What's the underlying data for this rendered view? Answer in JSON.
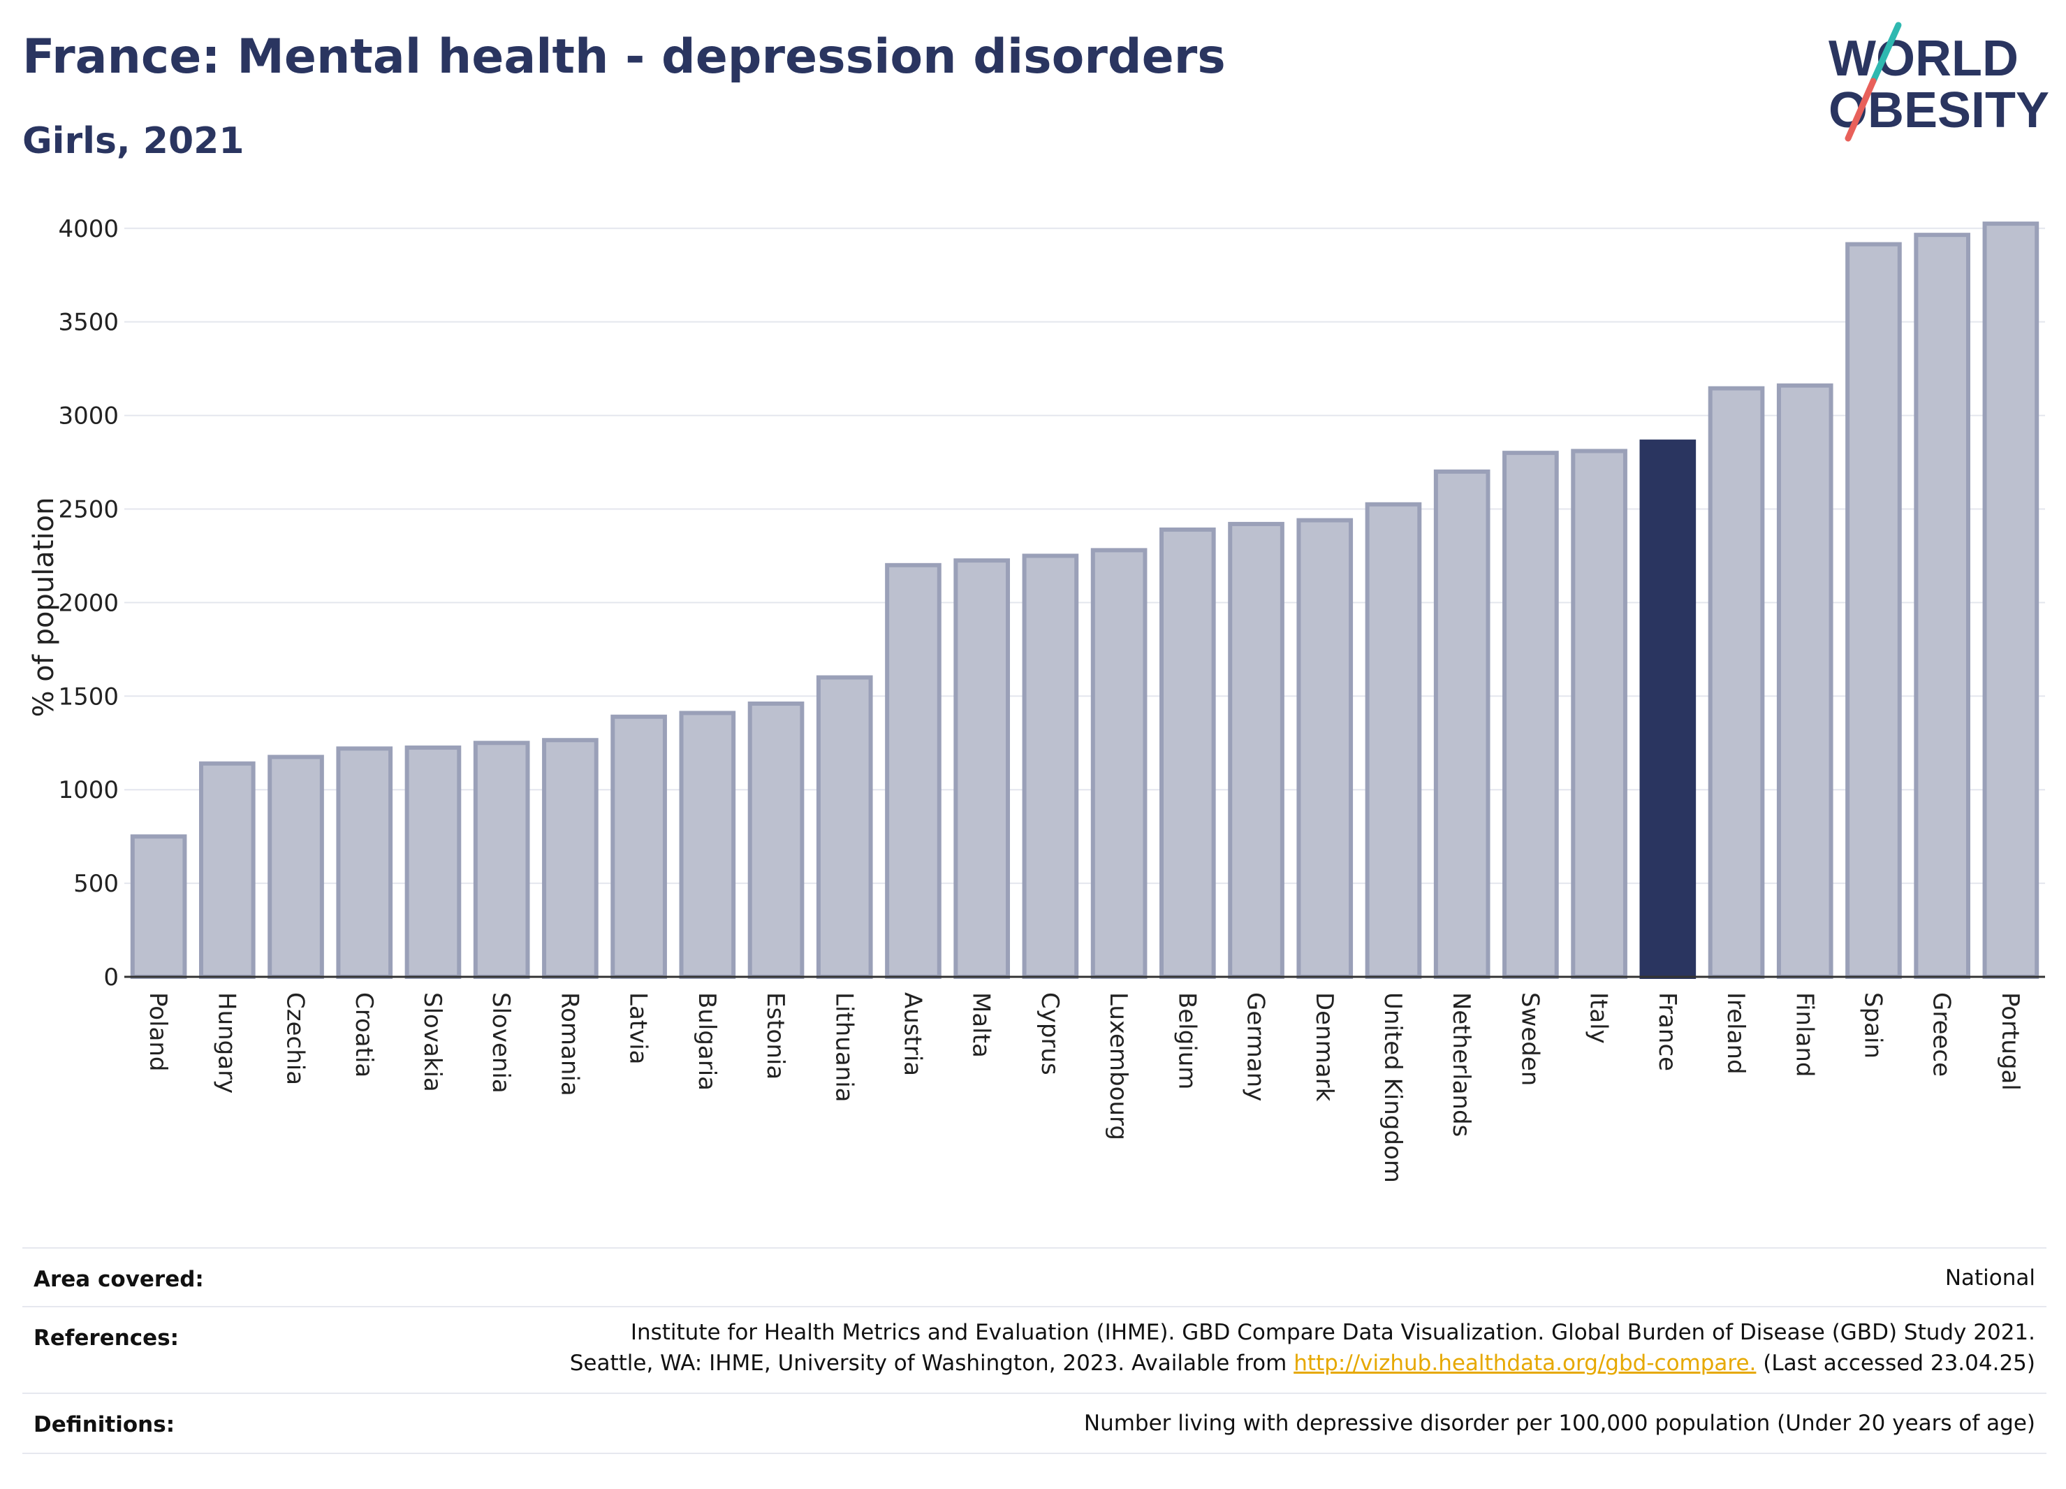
{
  "header": {
    "title": "France: Mental health - depression disorders",
    "subtitle": "Girls, 2021"
  },
  "logo": {
    "line1": "WORLD",
    "line2": "OBESITY",
    "colors": {
      "text": "#2a3560",
      "slash_teal": "#2fb8b0",
      "slash_red": "#e8605a"
    }
  },
  "chart_data": {
    "type": "bar",
    "title": "France: Mental health - depression disorders",
    "subtitle": "Girls, 2021",
    "ylabel": "% of population",
    "ylim": [
      0,
      4100
    ],
    "yticks": [
      0,
      500,
      1000,
      1500,
      2000,
      2500,
      3000,
      3500,
      4000
    ],
    "grid": true,
    "highlight": "France",
    "colors": {
      "bar": "#bcc0cf",
      "bar_edge": "#9aa0b8",
      "highlight": "#2a3560"
    },
    "categories": [
      "Poland",
      "Hungary",
      "Czechia",
      "Croatia",
      "Slovakia",
      "Slovenia",
      "Romania",
      "Latvia",
      "Bulgaria",
      "Estonia",
      "Lithuania",
      "Austria",
      "Malta",
      "Cyprus",
      "Luxembourg",
      "Belgium",
      "Germany",
      "Denmark",
      "United Kingdom",
      "Netherlands",
      "Sweden",
      "Italy",
      "France",
      "Ireland",
      "Finland",
      "Spain",
      "Greece",
      "Portugal"
    ],
    "values": [
      750,
      1140,
      1175,
      1220,
      1225,
      1250,
      1265,
      1390,
      1410,
      1460,
      1600,
      2200,
      2225,
      2250,
      2280,
      2390,
      2420,
      2440,
      2525,
      2700,
      2800,
      2810,
      2860,
      3145,
      3160,
      3915,
      3965,
      4025
    ]
  },
  "info": {
    "area_label": "Area covered:",
    "area_value": "National",
    "references_label": "References:",
    "references_line1": "Institute for Health Metrics and Evaluation (IHME). GBD Compare Data Visualization. Global Burden of Disease (GBD) Study 2021.",
    "references_line2_pre": "Seattle, WA: IHME, University of Washington, 2023. Available from ",
    "references_link": "http://vizhub.healthdata.org/gbd-compare.",
    "references_line2_post": " (Last accessed 23.04.25)",
    "definitions_label": "Definitions:",
    "definitions_value": "Number living with depressive disorder per 100,000 population (Under 20 years of age)"
  }
}
